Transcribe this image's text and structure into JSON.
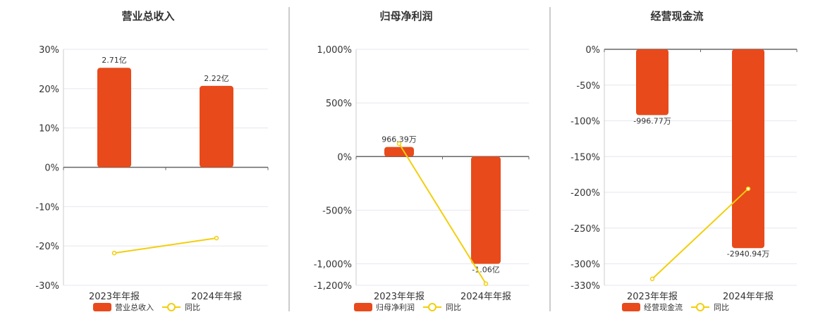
{
  "chart_data": [
    {
      "type": "bar",
      "title": "营业总收入",
      "categories": [
        "2023年年报",
        "2024年年报"
      ],
      "series": [
        {
          "name": "营业总收入",
          "kind": "bar",
          "values": [
            25.3,
            20.7
          ],
          "labels": [
            "2.71亿",
            "2.22亿"
          ]
        },
        {
          "name": "同比",
          "kind": "line",
          "values": [
            -21.8,
            -18.0
          ]
        }
      ],
      "yticks": [
        "30%",
        "20%",
        "10%",
        "0%",
        "-10%",
        "-20%",
        "-30%"
      ],
      "ylim": [
        -30,
        30
      ],
      "grid": true,
      "legend": "bottom"
    },
    {
      "type": "bar",
      "title": "归母净利润",
      "categories": [
        "2023年年报",
        "2024年年报"
      ],
      "series": [
        {
          "name": "归母净利润",
          "kind": "bar",
          "values": [
            90,
            -1000
          ],
          "labels": [
            "966.39万",
            "-1.06亿"
          ]
        },
        {
          "name": "同比",
          "kind": "line",
          "values": [
            120,
            -1185
          ]
        }
      ],
      "yticks": [
        "1,000%",
        "500%",
        "0%",
        "-500%",
        "-1,000%",
        "-1,200%"
      ],
      "ytick_values": [
        1000,
        500,
        0,
        -500,
        -1000,
        -1200
      ],
      "ylim": [
        -1200,
        1000
      ],
      "grid": true,
      "legend": "bottom"
    },
    {
      "type": "bar",
      "title": "经营现金流",
      "categories": [
        "2023年年报",
        "2024年年报"
      ],
      "series": [
        {
          "name": "经营现金流",
          "kind": "bar",
          "values": [
            -92,
            -278
          ],
          "labels": [
            "-996.77万",
            "-2940.94万"
          ]
        },
        {
          "name": "同比",
          "kind": "line",
          "values": [
            -321,
            -195
          ]
        }
      ],
      "yticks": [
        "0%",
        "-50%",
        "-100%",
        "-150%",
        "-200%",
        "-250%",
        "-300%",
        "-330%"
      ],
      "ytick_values": [
        0,
        -50,
        -100,
        -150,
        -200,
        -250,
        -300,
        -330
      ],
      "ylim": [
        -330,
        0
      ],
      "grid": true,
      "legend": "bottom"
    }
  ],
  "colors": {
    "bar": "#e84a1b",
    "line": "#f2cf0c",
    "grid": "#e6e6ef",
    "axis": "#666666"
  }
}
